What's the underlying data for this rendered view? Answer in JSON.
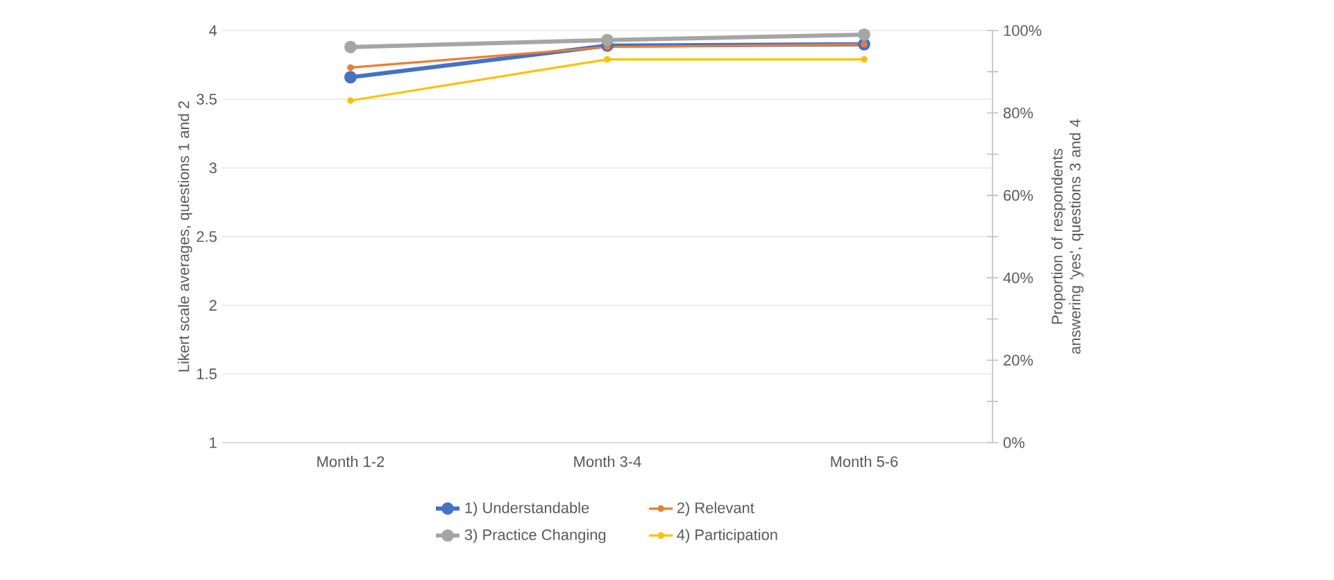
{
  "chart_data": {
    "type": "line",
    "ylabel": "Likert scale averages, questions 1 and 2",
    "y2label": "Proportion of respondents answering 'yes', questions 3 and 4",
    "categories": [
      "Month 1-2",
      "Month 3-4",
      "Month 5-6"
    ],
    "ylim": [
      1,
      4
    ],
    "yticks": [
      1,
      1.5,
      2,
      2.5,
      3,
      3.5,
      4
    ],
    "y2lim": [
      0,
      100
    ],
    "y2ticks": [
      {
        "value": 0,
        "label": "0%"
      },
      {
        "value": 10,
        "label": null
      },
      {
        "value": 20,
        "label": "20%"
      },
      {
        "value": 30,
        "label": null
      },
      {
        "value": 40,
        "label": "40%"
      },
      {
        "value": 50,
        "label": null
      },
      {
        "value": 60,
        "label": "60%"
      },
      {
        "value": 70,
        "label": null
      },
      {
        "value": 80,
        "label": "80%"
      },
      {
        "value": 90,
        "label": null
      },
      {
        "value": 100,
        "label": "100%"
      }
    ],
    "grid": "y",
    "legend": "bottom",
    "marker": "circle",
    "series": [
      {
        "name": "1) Understandable",
        "color": "#4472c4",
        "values": [
          3.66,
          3.89,
          3.9
        ]
      },
      {
        "name": "2) Relevant",
        "color": "#ed7d31",
        "values": [
          3.73,
          3.88,
          3.9
        ]
      },
      {
        "name": "3) Practice Changing",
        "color": "#a5a5a5",
        "axis": "y2",
        "values": [
          96,
          97.7,
          99
        ]
      },
      {
        "name": "4) Participation",
        "color": "#ffc000",
        "axis": "y2",
        "values": [
          83,
          93,
          93
        ]
      }
    ]
  }
}
